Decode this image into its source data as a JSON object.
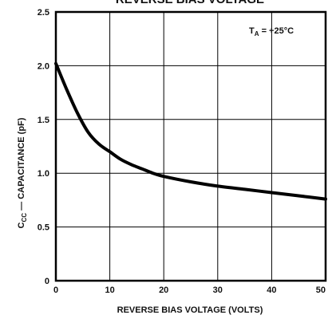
{
  "chart_data": {
    "type": "line",
    "title": "REVERSE BIAS VOLTAGE",
    "xlabel": "REVERSE BIAS VOLTAGE (VOLTS)",
    "ylabel_main": "C",
    "ylabel_sub": "CC",
    "ylabel_rest": " — CAPACITANCE (pF)",
    "annotation": {
      "main": "T",
      "sub": "A",
      "rest": " = +25°C"
    },
    "xlim": [
      0,
      50
    ],
    "ylim": [
      0,
      2.5
    ],
    "x_ticks": [
      0,
      10,
      20,
      30,
      40,
      50
    ],
    "x_tick_labels": [
      "0",
      "10",
      "20",
      "30",
      "40",
      "50"
    ],
    "y_ticks": [
      0,
      0.5,
      1.0,
      1.5,
      2.0,
      2.5
    ],
    "y_tick_labels": [
      "0",
      "0.5",
      "1.0",
      "1.5",
      "2.0",
      "2.5"
    ],
    "grid": true,
    "series": [
      {
        "x": [
          0,
          2,
          4,
          6,
          8,
          10,
          12,
          14,
          16,
          18,
          20,
          25,
          30,
          35,
          40,
          45,
          50
        ],
        "y": [
          2.02,
          1.78,
          1.56,
          1.38,
          1.27,
          1.2,
          1.13,
          1.08,
          1.04,
          1.0,
          0.97,
          0.92,
          0.88,
          0.85,
          0.82,
          0.79,
          0.76
        ]
      }
    ],
    "colors": {
      "line": "#000000",
      "grid": "#000000",
      "text": "#111111"
    }
  }
}
